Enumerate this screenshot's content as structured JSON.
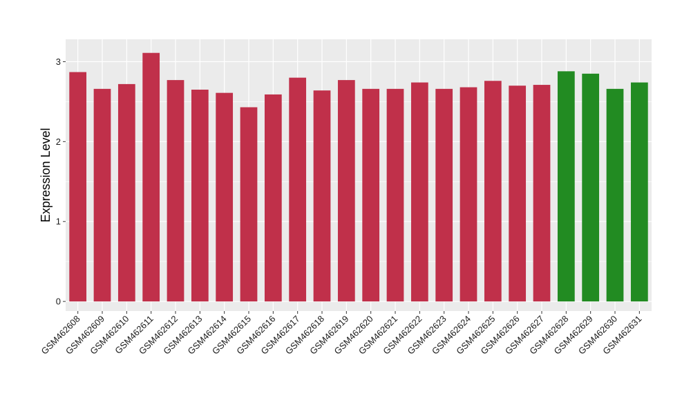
{
  "chart_data": {
    "type": "bar",
    "categories": [
      "GSM462608",
      "GSM462609",
      "GSM462610",
      "GSM462611",
      "GSM462612",
      "GSM462613",
      "GSM462614",
      "GSM462615",
      "GSM462616",
      "GSM462617",
      "GSM462618",
      "GSM462619",
      "GSM462620",
      "GSM462621",
      "GSM462622",
      "GSM462623",
      "GSM462624",
      "GSM462625",
      "GSM462626",
      "GSM462627",
      "GSM462628",
      "GSM462629",
      "GSM462630",
      "GSM462631"
    ],
    "values": [
      2.87,
      2.66,
      2.72,
      3.11,
      2.77,
      2.65,
      2.61,
      2.43,
      2.59,
      2.8,
      2.64,
      2.77,
      2.66,
      2.66,
      2.74,
      2.66,
      2.68,
      2.76,
      2.7,
      2.71,
      2.88,
      2.85,
      2.66,
      2.74
    ],
    "groups": [
      "a",
      "a",
      "a",
      "a",
      "a",
      "a",
      "a",
      "a",
      "a",
      "a",
      "a",
      "a",
      "a",
      "a",
      "a",
      "a",
      "a",
      "a",
      "a",
      "a",
      "b",
      "b",
      "b",
      "b"
    ],
    "group_colors": {
      "a": "#c0304a",
      "b": "#228b22"
    },
    "title": "",
    "xlabel": "",
    "ylabel": "Expression Level",
    "ylim": [
      -0.12,
      3.28
    ],
    "yticks": [
      0,
      1,
      2,
      3
    ],
    "grid": true,
    "panel_background": "#ebebeb",
    "grid_color": "#ffffff"
  }
}
